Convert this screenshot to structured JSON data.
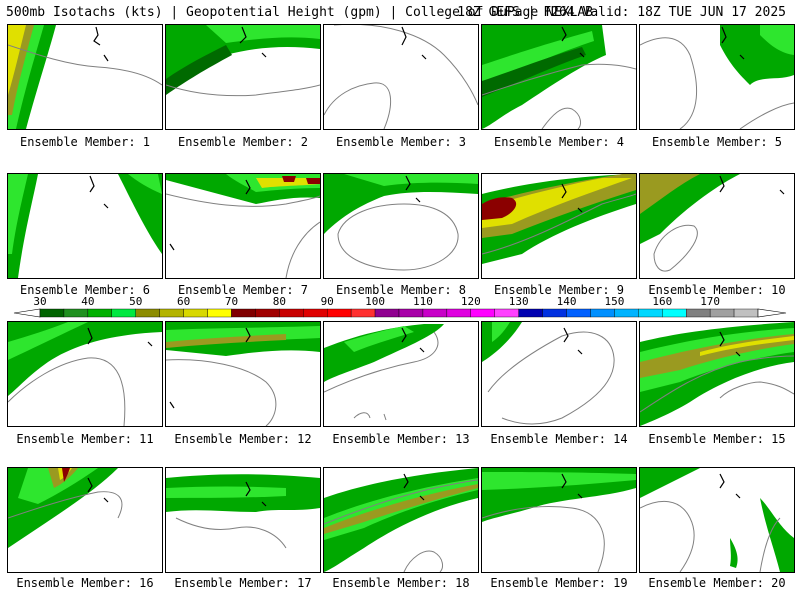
{
  "header": {
    "left": "500mb Isotachs (kts) | Geopotential Height (gpm) | College of DuPage NEXLAB",
    "right": "18Z GEFS | F264 Valid: 18Z TUE JUN 17 2025"
  },
  "panels": [
    {
      "label": "Ensemble Member: 1"
    },
    {
      "label": "Ensemble Member: 2"
    },
    {
      "label": "Ensemble Member: 3"
    },
    {
      "label": "Ensemble Member: 4"
    },
    {
      "label": "Ensemble Member: 5"
    },
    {
      "label": "Ensemble Member: 6"
    },
    {
      "label": "Ensemble Member: 7"
    },
    {
      "label": "Ensemble Member: 8"
    },
    {
      "label": "Ensemble Member: 9"
    },
    {
      "label": "Ensemble Member: 10"
    },
    {
      "label": "Ensemble Member: 11"
    },
    {
      "label": "Ensemble Member: 12"
    },
    {
      "label": "Ensemble Member: 13"
    },
    {
      "label": "Ensemble Member: 14"
    },
    {
      "label": "Ensemble Member: 15"
    },
    {
      "label": "Ensemble Member: 16"
    },
    {
      "label": "Ensemble Member: 17"
    },
    {
      "label": "Ensemble Member: 18"
    },
    {
      "label": "Ensemble Member: 19"
    },
    {
      "label": "Ensemble Member: 20"
    }
  ],
  "colorbar": {
    "ticks": [
      "30",
      "40",
      "50",
      "60",
      "70",
      "80",
      "90",
      "100",
      "110",
      "120",
      "130",
      "140",
      "150",
      "160",
      "170"
    ],
    "colors": [
      "#006400",
      "#209020",
      "#00b000",
      "#00e840",
      "#8c8c00",
      "#b4b400",
      "#d8d800",
      "#ffff00",
      "#800000",
      "#a00000",
      "#c80000",
      "#e00000",
      "#ff0000",
      "#ff3030",
      "#900090",
      "#a800a8",
      "#c800c8",
      "#e000e0",
      "#ff00ff",
      "#ff40ff",
      "#0000b0",
      "#0030e0",
      "#0060ff",
      "#0090ff",
      "#00b4ff",
      "#00d8ff",
      "#00ffff",
      "#808080",
      "#a0a0a0",
      "#c0c0c0"
    ]
  },
  "colors": {
    "wind_40": "#00a800",
    "wind_50": "#2ee62e",
    "wind_60": "#9a9a20",
    "wind_70": "#e0e000",
    "wind_80": "#8b0000",
    "dark_green": "#006a00",
    "height_contour": "#808080",
    "coast": "#000000"
  }
}
